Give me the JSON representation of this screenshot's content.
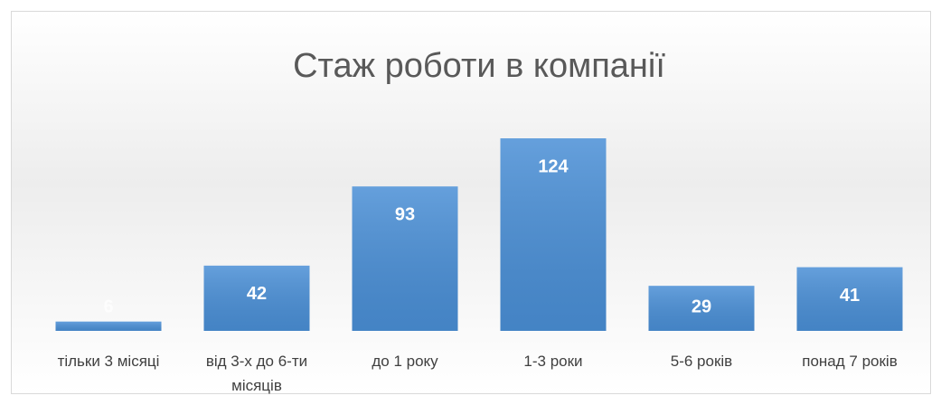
{
  "chart_data": {
    "type": "bar",
    "title": "Стаж роботи в компанії",
    "categories": [
      "тільки 3 місяці",
      "від 3-х до 6-ти місяців",
      "до 1 року",
      "1-3 роки",
      "5-6 років",
      "понад 7 років"
    ],
    "values": [
      6,
      42,
      93,
      124,
      29,
      41
    ],
    "color": "#4a8fd6"
  }
}
